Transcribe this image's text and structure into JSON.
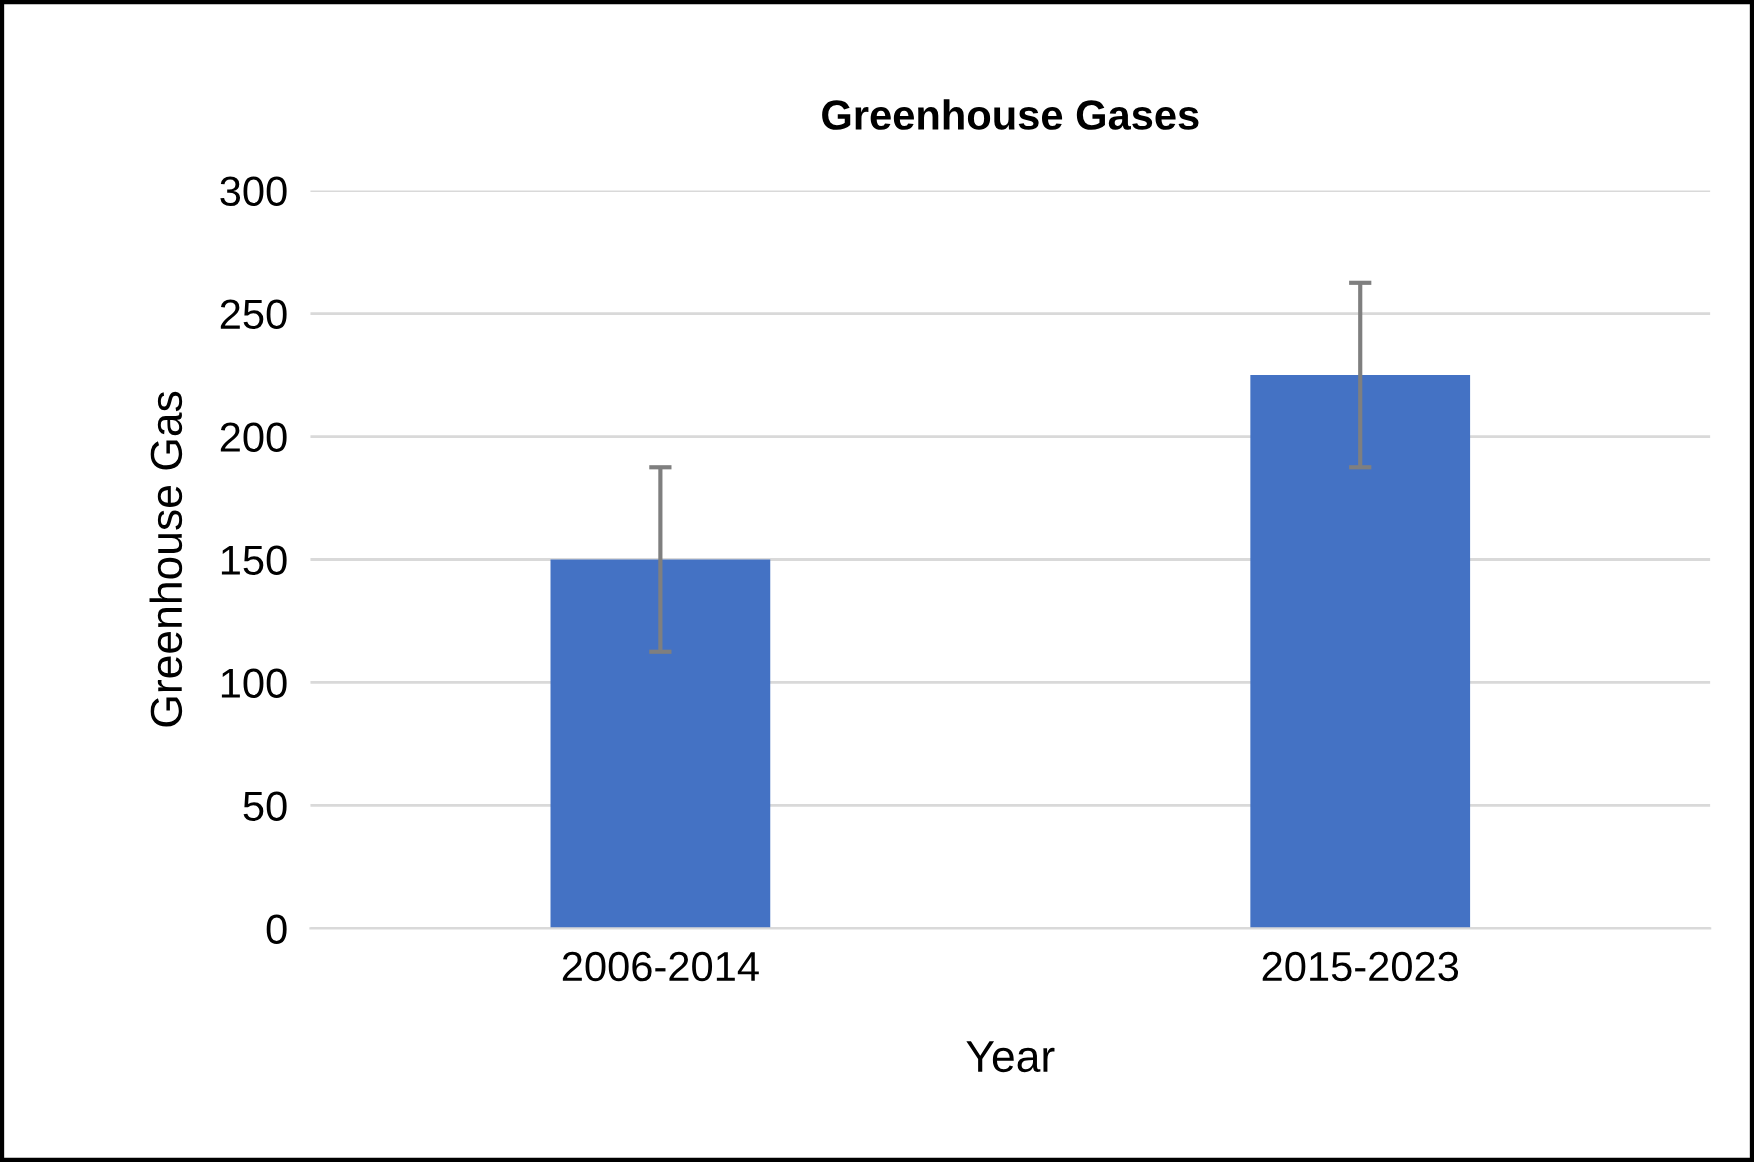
{
  "chart_data": {
    "type": "bar",
    "title": "Greenhouse Gases",
    "xlabel": "Year",
    "ylabel": "Greenhouse Gas",
    "categories": [
      "2006-2014",
      "2015-2023"
    ],
    "values": [
      150,
      225
    ],
    "errors": [
      37.5,
      37.5
    ],
    "color": "#4472c4",
    "ylim": [
      0,
      300
    ],
    "yticks": [
      0,
      50,
      100,
      150,
      200,
      250,
      300
    ],
    "grid": "y"
  }
}
